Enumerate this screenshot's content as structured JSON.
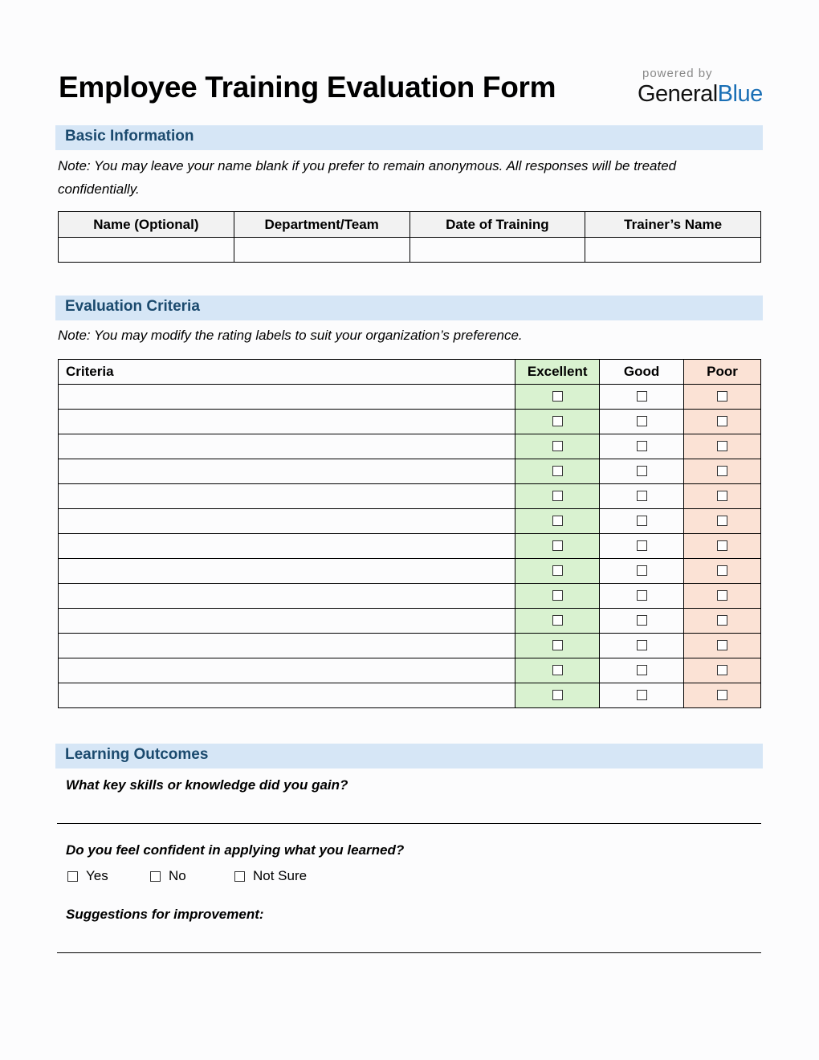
{
  "title": "Employee Training Evaluation Form",
  "brand": {
    "powered_by": "powered by",
    "name_part1": "General",
    "name_part2": "Blue"
  },
  "basic": {
    "heading": "Basic Information",
    "note": "Note: You may leave your name blank if you prefer to remain anonymous. All responses will be treated confidentially.",
    "columns": [
      "Name (Optional)",
      "Department/Team",
      "Date of Training",
      "Trainer’s Name"
    ]
  },
  "criteria": {
    "heading": "Evaluation Criteria",
    "note": "Note: You may modify the rating labels to suit your organization’s preference.",
    "columns": [
      "Criteria",
      "Excellent",
      "Good",
      "Poor"
    ],
    "row_count": 13,
    "colors": {
      "excellent": "#d9f2d0",
      "poor": "#fbe2d5"
    }
  },
  "outcomes": {
    "heading": "Learning Outcomes",
    "q1": "What key skills or knowledge did you gain?",
    "q2": "Do you feel confident in applying what you learned?",
    "options": [
      "Yes",
      "No",
      "Not Sure"
    ],
    "q3": "Suggestions for improvement:"
  }
}
